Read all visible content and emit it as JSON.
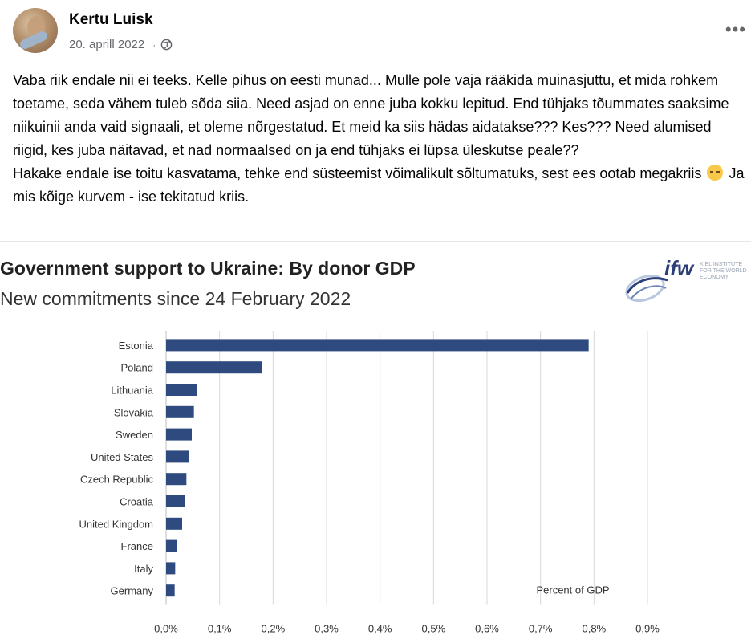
{
  "post": {
    "author": "Kertu Luisk",
    "date": "20. aprill 2022",
    "separator": "·",
    "more_label": "•••",
    "paragraphs": [
      "Vaba riik endale nii ei teeks. Kelle pihus on eesti munad... Mulle pole vaja rääkida muinasjuttu, et mida rohkem toetame, seda vähem tuleb sõda siia. Need asjad on enne juba kokku lepitud. End tühjaks tõummates saaksime niikuinii anda vaid signaali, et oleme nõrgestatud. Et meid ka siis hädas aidatakse??? Kes??? Need alumised riigid, kes juba näitavad, et nad normaalsed on ja end tühjaks ei lüpsa üleskutse peale??"
    ],
    "paragraph2_a": "Hakake endale ise toitu kasvatama, tehke end süsteemist võimalikult sõltumatuks, sest ees ootab megakriis",
    "paragraph2_b": "Ja mis kõige kurvem - ise tekitatud kriis.",
    "emoji": "pensive-face"
  },
  "chart_data": {
    "type": "bar",
    "orientation": "horizontal",
    "title": "Government support to Ukraine: By donor GDP",
    "subtitle": "New commitments since 24 February 2022",
    "categories": [
      "Estonia",
      "Poland",
      "Lithuania",
      "Slovakia",
      "Sweden",
      "United States",
      "Czech Republic",
      "Croatia",
      "United Kingdom",
      "France",
      "Italy",
      "Germany"
    ],
    "values": [
      0.79,
      0.18,
      0.058,
      0.052,
      0.048,
      0.043,
      0.038,
      0.036,
      0.03,
      0.02,
      0.017,
      0.016
    ],
    "x_ticks": [
      "0,0%",
      "0,1%",
      "0,2%",
      "0,3%",
      "0,4%",
      "0,5%",
      "0,6%",
      "0,7%",
      "0,8%",
      "0,9%"
    ],
    "xlim": [
      0,
      0.9
    ],
    "annotation": "Percent of GDP",
    "bar_color": "#2e4a7e",
    "grid": true
  },
  "logo": {
    "text": "ifw",
    "small": "KIEL INSTITUTE FOR THE WORLD ECONOMY"
  }
}
